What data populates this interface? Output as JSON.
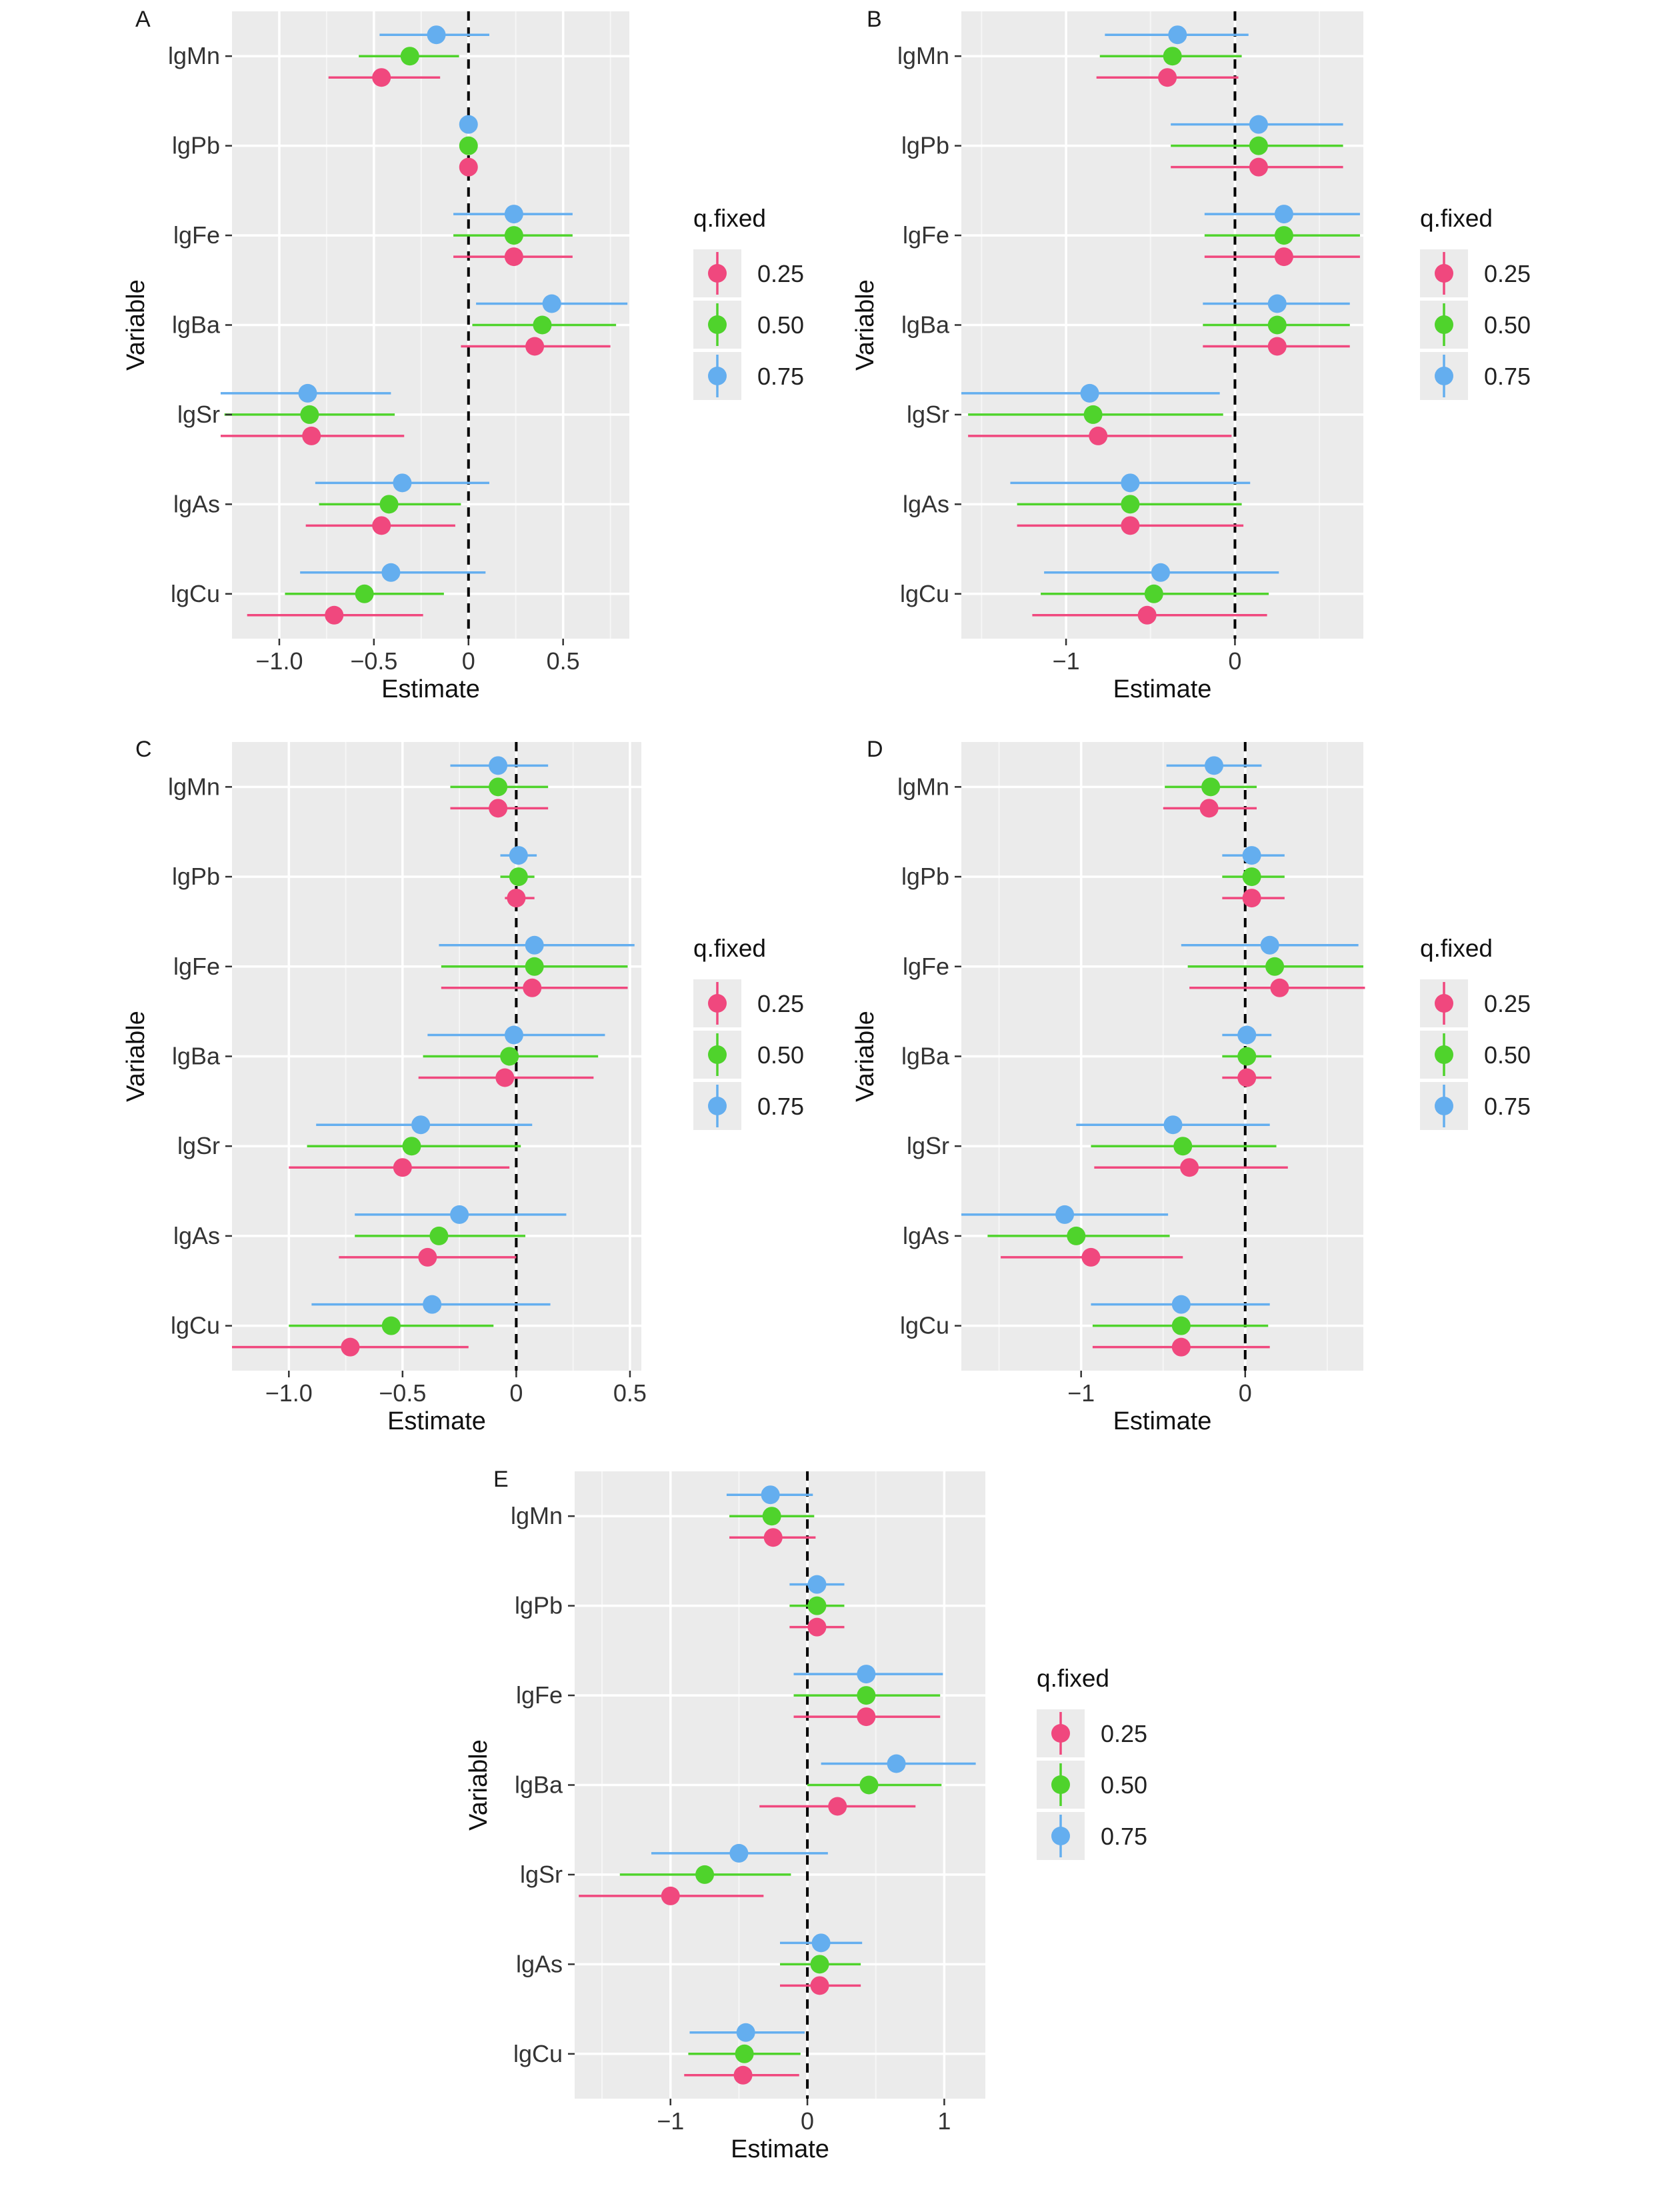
{
  "chart_data": [
    {
      "type": "forest",
      "panel_label": "A",
      "xlabel": "Estimate",
      "ylabel": "Variable",
      "variables": [
        "lgMn",
        "lgPb",
        "lgFe",
        "lgBa",
        "lgSr",
        "lgAs",
        "lgCu"
      ],
      "xlim": [
        -1.25,
        0.85
      ],
      "xticks": [
        -1.0,
        -0.5,
        0,
        0.5
      ],
      "xtick_labels": [
        "−1.0",
        "−0.5",
        "0",
        "0.5"
      ],
      "reference_line": 0,
      "legend": {
        "title": "q.fixed",
        "position": "right"
      },
      "series": [
        {
          "name": "0.25",
          "color": "#f0487e",
          "estimates": [
            -0.46,
            0.0,
            0.24,
            0.35,
            -0.83,
            -0.46,
            -0.71
          ],
          "lower": [
            -0.74,
            -0.02,
            -0.08,
            -0.04,
            -1.31,
            -0.86,
            -1.17
          ],
          "upper": [
            -0.15,
            0.02,
            0.55,
            0.75,
            -0.34,
            -0.07,
            -0.24
          ]
        },
        {
          "name": "0.50",
          "color": "#4fd32c",
          "estimates": [
            -0.31,
            0.0,
            0.24,
            0.39,
            -0.84,
            -0.42,
            -0.55
          ],
          "lower": [
            -0.58,
            -0.02,
            -0.08,
            0.02,
            -1.29,
            -0.79,
            -0.97
          ],
          "upper": [
            -0.05,
            0.02,
            0.55,
            0.78,
            -0.39,
            -0.04,
            -0.13
          ]
        },
        {
          "name": "0.75",
          "color": "#64aeef",
          "estimates": [
            -0.17,
            0.0,
            0.24,
            0.44,
            -0.85,
            -0.35,
            -0.41
          ],
          "lower": [
            -0.47,
            -0.02,
            -0.08,
            0.04,
            -1.31,
            -0.81,
            -0.89
          ],
          "upper": [
            0.11,
            0.02,
            0.55,
            0.84,
            -0.41,
            0.11,
            0.09
          ]
        }
      ]
    },
    {
      "type": "forest",
      "panel_label": "B",
      "xlabel": "Estimate",
      "ylabel": "Variable",
      "variables": [
        "lgMn",
        "lgPb",
        "lgFe",
        "lgBa",
        "lgSr",
        "lgAs",
        "lgCu"
      ],
      "xlim": [
        -1.62,
        0.76
      ],
      "xticks": [
        -1,
        0
      ],
      "xtick_labels": [
        "−1",
        "0"
      ],
      "reference_line": 0,
      "legend": {
        "title": "q.fixed",
        "position": "right"
      },
      "series": [
        {
          "name": "0.25",
          "color": "#f0487e",
          "estimates": [
            -0.4,
            0.14,
            0.29,
            0.25,
            -0.81,
            -0.62,
            -0.52
          ],
          "lower": [
            -0.82,
            -0.38,
            -0.18,
            -0.19,
            -1.58,
            -1.29,
            -1.2
          ],
          "upper": [
            0.02,
            0.64,
            0.74,
            0.68,
            -0.02,
            0.05,
            0.19
          ]
        },
        {
          "name": "0.50",
          "color": "#4fd32c",
          "estimates": [
            -0.37,
            0.14,
            0.29,
            0.25,
            -0.84,
            -0.62,
            -0.48
          ],
          "lower": [
            -0.8,
            -0.38,
            -0.18,
            -0.19,
            -1.58,
            -1.29,
            -1.15
          ],
          "upper": [
            0.04,
            0.64,
            0.74,
            0.68,
            -0.07,
            0.04,
            0.2
          ]
        },
        {
          "name": "0.75",
          "color": "#64aeef",
          "estimates": [
            -0.34,
            0.14,
            0.29,
            0.25,
            -0.86,
            -0.62,
            -0.44
          ],
          "lower": [
            -0.77,
            -0.38,
            -0.18,
            -0.19,
            -1.62,
            -1.33,
            -1.13
          ],
          "upper": [
            0.08,
            0.64,
            0.74,
            0.68,
            -0.09,
            0.09,
            0.26
          ]
        }
      ]
    },
    {
      "type": "forest",
      "panel_label": "C",
      "xlabel": "Estimate",
      "ylabel": "Variable",
      "variables": [
        "lgMn",
        "lgPb",
        "lgFe",
        "lgBa",
        "lgSr",
        "lgAs",
        "lgCu"
      ],
      "xlim": [
        -1.25,
        0.55
      ],
      "xticks": [
        -1.0,
        -0.5,
        0,
        0.5
      ],
      "xtick_labels": [
        "−1.0",
        "−0.5",
        "0",
        "0.5"
      ],
      "reference_line": 0,
      "legend": {
        "title": "q.fixed",
        "position": "right"
      },
      "series": [
        {
          "name": "0.25",
          "color": "#f0487e",
          "estimates": [
            -0.08,
            0.0,
            0.07,
            -0.05,
            -0.5,
            -0.39,
            -0.73
          ],
          "lower": [
            -0.29,
            -0.05,
            -0.33,
            -0.43,
            -1.0,
            -0.78,
            -1.25
          ],
          "upper": [
            0.14,
            0.08,
            0.49,
            0.34,
            -0.03,
            0.0,
            -0.21
          ]
        },
        {
          "name": "0.50",
          "color": "#4fd32c",
          "estimates": [
            -0.08,
            0.01,
            0.08,
            -0.03,
            -0.46,
            -0.34,
            -0.55
          ],
          "lower": [
            -0.29,
            -0.07,
            -0.33,
            -0.41,
            -0.92,
            -0.71,
            -1.0
          ],
          "upper": [
            0.14,
            0.08,
            0.49,
            0.36,
            0.02,
            0.04,
            -0.1
          ]
        },
        {
          "name": "0.75",
          "color": "#64aeef",
          "estimates": [
            -0.08,
            0.01,
            0.08,
            -0.01,
            -0.42,
            -0.25,
            -0.37
          ],
          "lower": [
            -0.29,
            -0.07,
            -0.34,
            -0.39,
            -0.88,
            -0.71,
            -0.9
          ],
          "upper": [
            0.14,
            0.09,
            0.52,
            0.39,
            0.07,
            0.22,
            0.15
          ]
        }
      ]
    },
    {
      "type": "forest",
      "panel_label": "D",
      "xlabel": "Estimate",
      "ylabel": "Variable",
      "variables": [
        "lgMn",
        "lgPb",
        "lgFe",
        "lgBa",
        "lgSr",
        "lgAs",
        "lgCu"
      ],
      "xlim": [
        -1.73,
        0.72
      ],
      "xticks": [
        -1,
        0
      ],
      "xtick_labels": [
        "−1",
        "0"
      ],
      "reference_line": 0,
      "legend": {
        "title": "q.fixed",
        "position": "right"
      },
      "series": [
        {
          "name": "0.25",
          "color": "#f0487e",
          "estimates": [
            -0.22,
            0.04,
            0.21,
            0.01,
            -0.34,
            -0.94,
            -0.39
          ],
          "lower": [
            -0.5,
            -0.14,
            -0.34,
            -0.14,
            -0.92,
            -1.49,
            -0.93
          ],
          "upper": [
            0.07,
            0.24,
            0.73,
            0.16,
            0.26,
            -0.38,
            0.15
          ]
        },
        {
          "name": "0.50",
          "color": "#4fd32c",
          "estimates": [
            -0.21,
            0.04,
            0.18,
            0.01,
            -0.38,
            -1.03,
            -0.39
          ],
          "lower": [
            -0.49,
            -0.14,
            -0.35,
            -0.14,
            -0.94,
            -1.57,
            -0.93
          ],
          "upper": [
            0.07,
            0.24,
            0.72,
            0.16,
            0.19,
            -0.46,
            0.14
          ]
        },
        {
          "name": "0.75",
          "color": "#64aeef",
          "estimates": [
            -0.19,
            0.04,
            0.15,
            0.01,
            -0.44,
            -1.1,
            -0.39
          ],
          "lower": [
            -0.48,
            -0.14,
            -0.39,
            -0.14,
            -1.03,
            -1.73,
            -0.94
          ],
          "upper": [
            0.1,
            0.24,
            0.69,
            0.16,
            0.15,
            -0.47,
            0.15
          ]
        }
      ]
    },
    {
      "type": "forest",
      "panel_label": "E",
      "xlabel": "Estimate",
      "ylabel": "Variable",
      "variables": [
        "lgMn",
        "lgPb",
        "lgFe",
        "lgBa",
        "lgSr",
        "lgAs",
        "lgCu"
      ],
      "xlim": [
        -1.7,
        1.3
      ],
      "xticks": [
        -1,
        0,
        1
      ],
      "xtick_labels": [
        "−1",
        "0",
        "1"
      ],
      "reference_line": 0,
      "legend": {
        "title": "q.fixed",
        "position": "right"
      },
      "series": [
        {
          "name": "0.25",
          "color": "#f0487e",
          "estimates": [
            -0.25,
            0.07,
            0.43,
            0.22,
            -1.0,
            0.09,
            -0.47
          ],
          "lower": [
            -0.57,
            -0.13,
            -0.1,
            -0.35,
            -1.67,
            -0.2,
            -0.9
          ],
          "upper": [
            0.06,
            0.27,
            0.97,
            0.79,
            -0.32,
            0.39,
            -0.06
          ]
        },
        {
          "name": "0.50",
          "color": "#4fd32c",
          "estimates": [
            -0.26,
            0.07,
            0.43,
            0.45,
            -0.75,
            0.09,
            -0.46
          ],
          "lower": [
            -0.57,
            -0.13,
            -0.1,
            0.0,
            -1.37,
            -0.2,
            -0.87
          ],
          "upper": [
            0.05,
            0.27,
            0.97,
            0.98,
            -0.12,
            0.39,
            -0.05
          ]
        },
        {
          "name": "0.75",
          "color": "#64aeef",
          "estimates": [
            -0.27,
            0.07,
            0.43,
            0.65,
            -0.5,
            0.1,
            -0.45
          ],
          "lower": [
            -0.59,
            -0.13,
            -0.1,
            0.1,
            -1.14,
            -0.2,
            -0.86
          ],
          "upper": [
            0.04,
            0.27,
            0.99,
            1.23,
            0.15,
            0.4,
            -0.02
          ]
        }
      ]
    }
  ]
}
